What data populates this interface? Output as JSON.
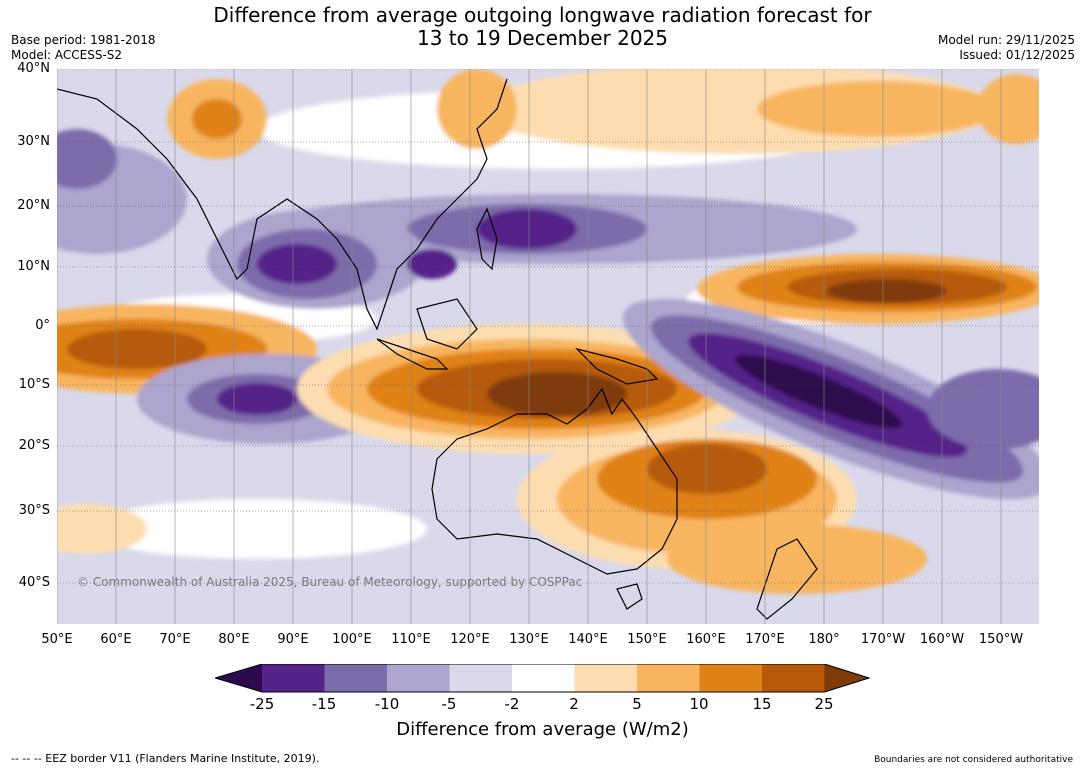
{
  "title": {
    "line1": "Difference from average outgoing longwave radiation forecast for",
    "line2": "13 to 19 December 2025"
  },
  "meta": {
    "base_period": "Base period: 1981-2018",
    "model": "Model: ACCESS-S2",
    "model_run": "Model run: 29/11/2025",
    "issued": "Issued: 01/12/2025"
  },
  "map": {
    "copyright": "© Commonwealth of Australia 2025, Bureau of Meteorology, supported by COSPPac",
    "lat_labels": [
      "40°N",
      "30°N",
      "20°N",
      "10°N",
      "0°",
      "10°S",
      "20°S",
      "30°S",
      "40°S"
    ],
    "lon_labels": [
      "50°E",
      "60°E",
      "70°E",
      "80°E",
      "90°E",
      "100°E",
      "110°E",
      "120°E",
      "130°E",
      "140°E",
      "150°E",
      "160°E",
      "170°E",
      "180°",
      "170°W",
      "160°W",
      "150°W"
    ]
  },
  "colorbar": {
    "ticks": [
      "-25",
      "-15",
      "-10",
      "-5",
      "-2",
      "2",
      "5",
      "10",
      "15",
      "25"
    ],
    "colors": [
      "#2d0a4e",
      "#54238a",
      "#7d6cab",
      "#aca5ce",
      "#d9d9eb",
      "#ffffff",
      "#fdddb0",
      "#f8b560",
      "#e08218",
      "#b65a09",
      "#7f3b08"
    ],
    "title": "Difference from average (W/m2)"
  },
  "footer": {
    "eez": "--  --  -- EEZ border V11 (Flanders Marine Institute, 2019).",
    "disclaimer": "Boundaries are not considered authoritative"
  }
}
